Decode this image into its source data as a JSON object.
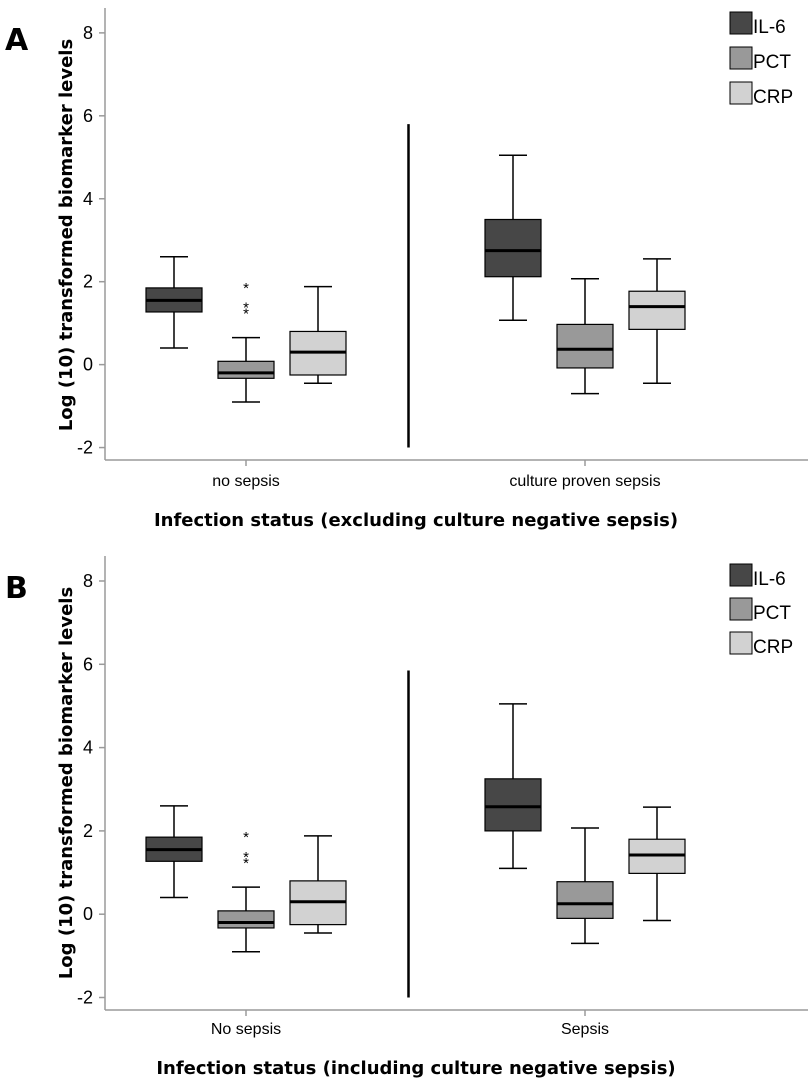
{
  "chart_data": [
    {
      "type": "box",
      "panel_label": "A",
      "ylabel": "Log (10) transformed biomarker levels",
      "xlabel": "Infection status (excluding culture negative sepsis)",
      "ylim": [
        -2.3,
        8.6
      ],
      "yticks": [
        -2,
        0,
        2,
        4,
        6,
        8
      ],
      "legend": {
        "position": "top-right",
        "entries": [
          "IL-6",
          "PCT",
          "CRP"
        ]
      },
      "categories": [
        "no sepsis",
        "culture proven sepsis"
      ],
      "series": [
        {
          "name": "IL-6",
          "color": "#474747",
          "boxes": [
            {
              "min": 0.4,
              "q1": 1.27,
              "median": 1.55,
              "q3": 1.85,
              "max": 2.6,
              "outliers": []
            },
            {
              "min": 1.07,
              "q1": 2.12,
              "median": 2.75,
              "q3": 3.5,
              "max": 5.05,
              "outliers": []
            }
          ]
        },
        {
          "name": "PCT",
          "color": "#999999",
          "boxes": [
            {
              "min": -0.9,
              "q1": -0.33,
              "median": -0.2,
              "q3": 0.08,
              "max": 0.65,
              "outliers": [
                1.3,
                1.45,
                1.92
              ]
            },
            {
              "min": -0.7,
              "q1": -0.08,
              "median": 0.37,
              "q3": 0.97,
              "max": 2.07,
              "outliers": []
            }
          ]
        },
        {
          "name": "CRP",
          "color": "#d2d2d2",
          "boxes": [
            {
              "min": -0.45,
              "q1": -0.25,
              "median": 0.3,
              "q3": 0.8,
              "max": 1.88,
              "outliers": []
            },
            {
              "min": -0.45,
              "q1": 0.85,
              "median": 1.4,
              "q3": 1.77,
              "max": 2.55,
              "outliers": []
            }
          ]
        }
      ]
    },
    {
      "type": "box",
      "panel_label": "B",
      "ylabel": "Log (10) transformed biomarker levels",
      "xlabel": "Infection status (including culture negative sepsis)",
      "ylim": [
        -2.3,
        8.6
      ],
      "yticks": [
        -2,
        0,
        2,
        4,
        6,
        8
      ],
      "legend": {
        "position": "top-right",
        "entries": [
          "IL-6",
          "PCT",
          "CRP"
        ]
      },
      "categories": [
        "No sepsis",
        "Sepsis"
      ],
      "series": [
        {
          "name": "IL-6",
          "color": "#474747",
          "boxes": [
            {
              "min": 0.4,
              "q1": 1.27,
              "median": 1.55,
              "q3": 1.85,
              "max": 2.6,
              "outliers": []
            },
            {
              "min": 1.1,
              "q1": 2.0,
              "median": 2.58,
              "q3": 3.25,
              "max": 5.05,
              "outliers": []
            }
          ]
        },
        {
          "name": "PCT",
          "color": "#999999",
          "boxes": [
            {
              "min": -0.9,
              "q1": -0.33,
              "median": -0.2,
              "q3": 0.08,
              "max": 0.65,
              "outliers": [
                1.3,
                1.45,
                1.92
              ]
            },
            {
              "min": -0.7,
              "q1": -0.1,
              "median": 0.25,
              "q3": 0.78,
              "max": 2.07,
              "outliers": []
            }
          ]
        },
        {
          "name": "CRP",
          "color": "#d2d2d2",
          "boxes": [
            {
              "min": -0.45,
              "q1": -0.25,
              "median": 0.3,
              "q3": 0.8,
              "max": 1.88,
              "outliers": []
            },
            {
              "min": -0.15,
              "q1": 0.98,
              "median": 1.42,
              "q3": 1.8,
              "max": 2.57,
              "outliers": []
            }
          ]
        }
      ]
    }
  ]
}
